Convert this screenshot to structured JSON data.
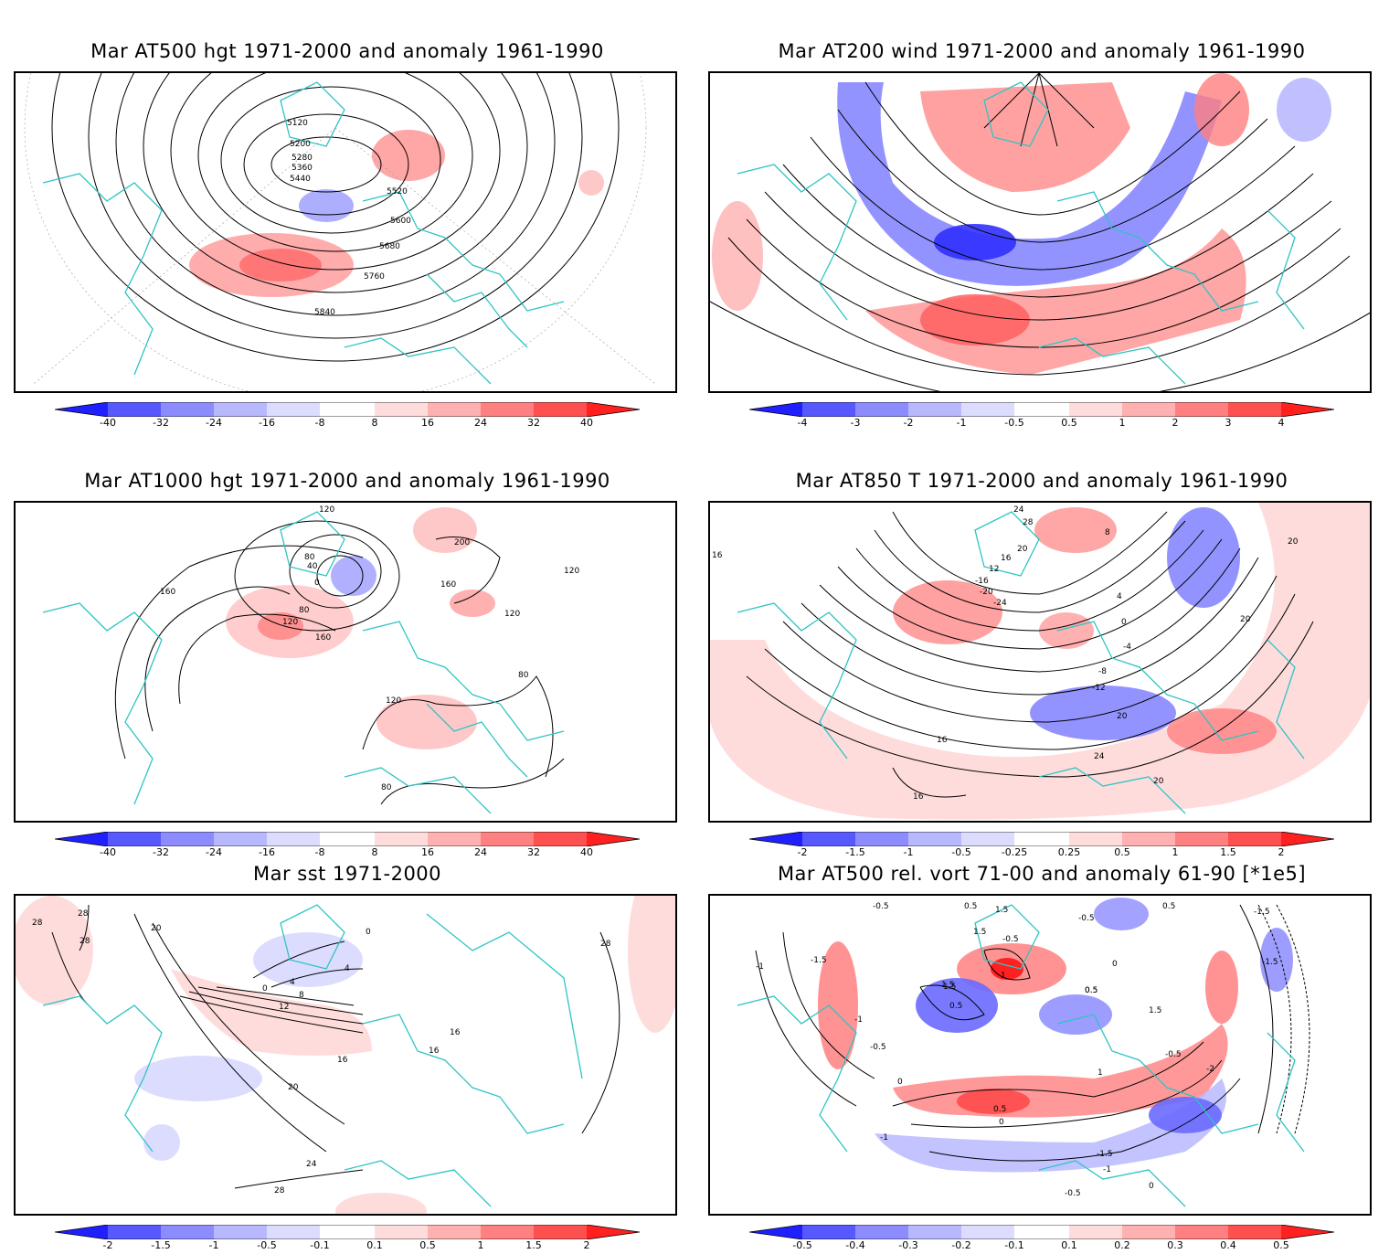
{
  "panels": [
    {
      "id": "p1",
      "title": "Mar AT500 hgt 1971-2000 and anomaly 1961-1990",
      "contour_labels": [
        "5120",
        "5200",
        "5280",
        "5360",
        "5440",
        "5520",
        "5600",
        "5680",
        "5760",
        "5840"
      ],
      "colorbar": {
        "ticks": [
          "-40",
          "-32",
          "-24",
          "-16",
          "-8",
          "8",
          "16",
          "24",
          "32",
          "40"
        ]
      }
    },
    {
      "id": "p2",
      "title": "Mar AT200 wind 1971-2000 and anomaly 1961-1990",
      "contour_labels": [],
      "colorbar": {
        "ticks": [
          "-4",
          "-3",
          "-2",
          "-1",
          "-0.5",
          "0.5",
          "1",
          "2",
          "3",
          "4"
        ]
      }
    },
    {
      "id": "p3",
      "title": "Mar AT1000 hgt 1971-2000 and anomaly 1961-1990",
      "contour_labels": [
        "120",
        "80",
        "40",
        "0",
        "160",
        "200",
        "160",
        "120",
        "120",
        "160",
        "80",
        "120",
        "80",
        "120",
        "80"
      ],
      "colorbar": {
        "ticks": [
          "-40",
          "-32",
          "-24",
          "-16",
          "-8",
          "8",
          "16",
          "24",
          "32",
          "40"
        ]
      }
    },
    {
      "id": "p4",
      "title": "Mar AT850 T 1971-2000 and anomaly 1961-1990",
      "contour_labels": [
        "24",
        "28",
        "20",
        "16",
        "12",
        "16",
        "8",
        "4",
        "0",
        "-4",
        "-8",
        "-12",
        "-16",
        "-20",
        "-24",
        "16",
        "20",
        "20",
        "16",
        "24",
        "20",
        "20"
      ],
      "colorbar": {
        "ticks": [
          "-2",
          "-1.5",
          "-1",
          "-0.5",
          "-0.25",
          "0.25",
          "0.5",
          "1",
          "1.5",
          "2"
        ]
      }
    },
    {
      "id": "p5",
      "title": "Mar sst 1971-2000",
      "contour_labels": [
        "28",
        "28",
        "28",
        "20",
        "0",
        "4",
        "8",
        "12",
        "4",
        "0",
        "16",
        "16",
        "20",
        "24",
        "28",
        "16",
        "28"
      ],
      "colorbar": {
        "ticks": [
          "-2",
          "-1.5",
          "-1",
          "-0.5",
          "-0.1",
          "0.1",
          "0.5",
          "1",
          "1.5",
          "2"
        ]
      }
    },
    {
      "id": "p6",
      "title": "Mar AT500 rel. vort 71-00 and anomaly 61-90 [*1e5]",
      "contour_labels": [
        "-0.5",
        "0.5",
        "1.5",
        "-0.5",
        "0.5",
        "1.5",
        "-1.5",
        "-1",
        "-1.5",
        "1.5",
        "0.5",
        "1",
        "-0.5",
        "-1",
        "0",
        "0.5",
        "0",
        "-0.5",
        "-1",
        "-1.5",
        "-2",
        "-1.5",
        "1.5",
        "0.5",
        "0",
        "-1",
        "-0.5",
        "1",
        "-0.5",
        "0.5",
        "1.5",
        "0"
      ],
      "colorbar": {
        "ticks": [
          "-0.5",
          "-0.4",
          "-0.3",
          "-0.2",
          "-0.1",
          "0.1",
          "0.2",
          "0.3",
          "0.4",
          "0.5"
        ]
      }
    }
  ],
  "colors": {
    "coast": "#2ec4c4",
    "blue_scale": [
      "#2020ff",
      "#5858ff",
      "#8c8cff",
      "#b8b8ff",
      "#dcdcff"
    ],
    "red_scale": [
      "#ffdcdc",
      "#ffb0b0",
      "#ff8080",
      "#ff5050",
      "#ff2020"
    ]
  }
}
